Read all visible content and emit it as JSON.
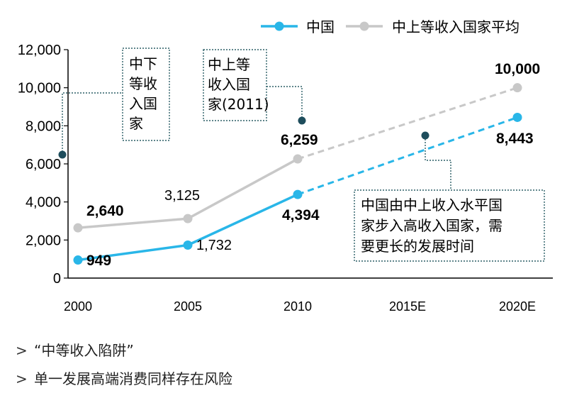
{
  "chart_data": {
    "type": "line",
    "categories": [
      "2000",
      "2005",
      "2010",
      "2015E",
      "2020E"
    ],
    "ylim": [
      0,
      12000
    ],
    "yticks": [
      "0",
      "2,000",
      "4,000",
      "6,000",
      "8,000",
      "10,000",
      "12,000"
    ],
    "grid": false,
    "legend_position": "top-right",
    "series": [
      {
        "name": "中国",
        "color": "#29B6E8",
        "x": [
          "2000",
          "2005",
          "2010",
          "2020E"
        ],
        "values": [
          949,
          1732,
          4394,
          8443
        ],
        "labels": [
          "949",
          "1,732",
          "4,394",
          "8,443"
        ],
        "projected_after": "2010"
      },
      {
        "name": "中上等收入国家平均",
        "color": "#C8C8C8",
        "x": [
          "2000",
          "2005",
          "2010",
          "2020E"
        ],
        "values": [
          2640,
          3125,
          6259,
          10000
        ],
        "labels": [
          "2,640",
          "3,125",
          "6,259",
          "10,000"
        ],
        "projected_after": "2010"
      }
    ],
    "annotations": [
      {
        "lines": [
          "中下",
          "等收",
          "入国",
          "家"
        ]
      },
      {
        "lines": [
          "中上等",
          "收入国",
          "家(2011)"
        ]
      },
      {
        "lines": [
          "中国由中上收入水平国",
          "家步入高收入国家，需",
          "要更长的发展时间"
        ]
      }
    ],
    "marker_color": "#1E4D5C"
  },
  "bullets": [
    {
      "symbol": ">",
      "text": "“中等收入陷阱”"
    },
    {
      "symbol": ">",
      "text": "单一发展高端消费同样存在风险"
    }
  ]
}
